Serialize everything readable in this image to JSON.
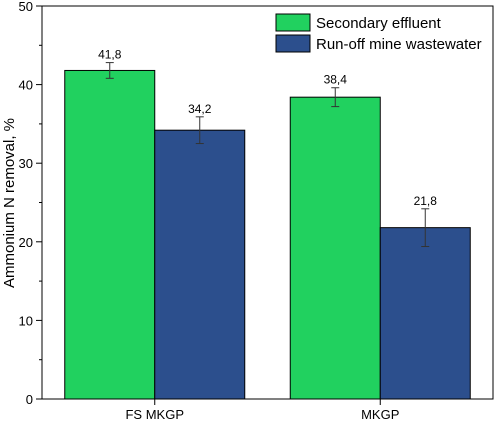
{
  "chart_data": {
    "type": "bar",
    "categories": [
      "FS MKGP",
      "MKGP"
    ],
    "series": [
      {
        "name": "Secondary effluent",
        "color": "#21d15f",
        "values": [
          41.8,
          38.4
        ],
        "errors": [
          1.0,
          1.2
        ],
        "labels": [
          "41,8",
          "38,4"
        ]
      },
      {
        "name": "Run-off mine wastewater",
        "color": "#2c4f8d",
        "values": [
          34.2,
          21.8
        ],
        "errors": [
          1.7,
          2.4
        ],
        "labels": [
          "34,2",
          "21,8"
        ]
      }
    ],
    "title": "",
    "xlabel": "",
    "ylabel": "Ammonium N removal, %",
    "ylim": [
      0,
      50
    ],
    "yticks": [
      0,
      10,
      20,
      30,
      40,
      50
    ],
    "grid": false,
    "legend_position": "top-right"
  }
}
